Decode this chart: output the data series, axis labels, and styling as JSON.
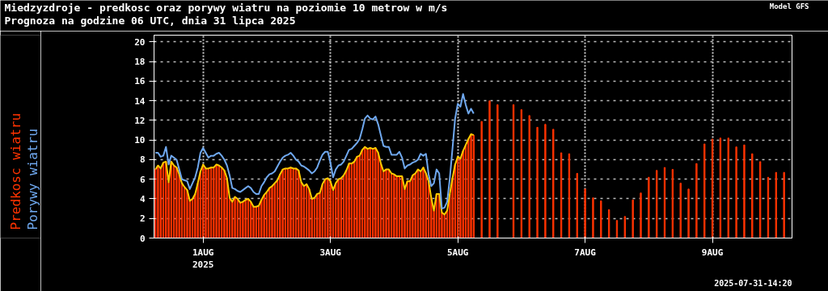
{
  "chart_data": {
    "type": "bar",
    "title": "Miedzyzdroje - predkosc oraz porywy wiatru na poziomie 10 metrow w m/s",
    "subtitle": "Prognoza na godzine 06 UTC, dnia 31 lipca 2025",
    "annotations": [
      "Model GFS",
      "2025-07-31-14:20"
    ],
    "legend": "left",
    "grid": true,
    "xlim": [
      "2025-07-31T05:30",
      "2025-08-10T06:00"
    ],
    "xticks": [
      {
        "value": "2025-08-01",
        "label": "1AUG\n2025"
      },
      {
        "value": "2025-08-03",
        "label": "3AUG"
      },
      {
        "value": "2025-08-05",
        "label": "5AUG"
      },
      {
        "value": "2025-08-07",
        "label": "7AUG"
      },
      {
        "value": "2025-08-09",
        "label": "9AUG"
      }
    ],
    "ylim": [
      0,
      20.7
    ],
    "yticks": [
      0,
      2,
      4,
      6,
      8,
      10,
      12,
      14,
      16,
      18,
      20
    ],
    "x": [
      "2025-07-31T06:00",
      "2025-07-31T07:00",
      "2025-07-31T08:00",
      "2025-07-31T09:00",
      "2025-07-31T10:00",
      "2025-07-31T11:00",
      "2025-07-31T12:00",
      "2025-07-31T13:00",
      "2025-07-31T14:00",
      "2025-07-31T15:00",
      "2025-07-31T16:00",
      "2025-07-31T17:00",
      "2025-07-31T18:00",
      "2025-07-31T19:00",
      "2025-07-31T20:00",
      "2025-07-31T21:00",
      "2025-07-31T22:00",
      "2025-07-31T23:00",
      "2025-08-01T00:00",
      "2025-08-01T01:00",
      "2025-08-01T02:00",
      "2025-08-01T03:00",
      "2025-08-01T04:00",
      "2025-08-01T05:00",
      "2025-08-01T06:00",
      "2025-08-01T07:00",
      "2025-08-01T08:00",
      "2025-08-01T09:00",
      "2025-08-01T10:00",
      "2025-08-01T11:00",
      "2025-08-01T12:00",
      "2025-08-01T13:00",
      "2025-08-01T14:00",
      "2025-08-01T15:00",
      "2025-08-01T16:00",
      "2025-08-01T17:00",
      "2025-08-01T18:00",
      "2025-08-01T19:00",
      "2025-08-01T20:00",
      "2025-08-01T21:00",
      "2025-08-01T22:00",
      "2025-08-01T23:00",
      "2025-08-02T00:00",
      "2025-08-02T01:00",
      "2025-08-02T02:00",
      "2025-08-02T03:00",
      "2025-08-02T04:00",
      "2025-08-02T05:00",
      "2025-08-02T06:00",
      "2025-08-02T07:00",
      "2025-08-02T08:00",
      "2025-08-02T09:00",
      "2025-08-02T10:00",
      "2025-08-02T11:00",
      "2025-08-02T12:00",
      "2025-08-02T13:00",
      "2025-08-02T14:00",
      "2025-08-02T15:00",
      "2025-08-02T16:00",
      "2025-08-02T17:00",
      "2025-08-02T18:00",
      "2025-08-02T19:00",
      "2025-08-02T20:00",
      "2025-08-02T21:00",
      "2025-08-02T22:00",
      "2025-08-02T23:00",
      "2025-08-03T00:00",
      "2025-08-03T01:00",
      "2025-08-03T02:00",
      "2025-08-03T03:00",
      "2025-08-03T04:00",
      "2025-08-03T05:00",
      "2025-08-03T06:00",
      "2025-08-03T07:00",
      "2025-08-03T08:00",
      "2025-08-03T09:00",
      "2025-08-03T10:00",
      "2025-08-03T11:00",
      "2025-08-03T12:00",
      "2025-08-03T13:00",
      "2025-08-03T14:00",
      "2025-08-03T15:00",
      "2025-08-03T16:00",
      "2025-08-03T17:00",
      "2025-08-03T18:00",
      "2025-08-03T19:00",
      "2025-08-03T20:00",
      "2025-08-03T21:00",
      "2025-08-03T22:00",
      "2025-08-03T23:00",
      "2025-08-04T00:00",
      "2025-08-04T01:00",
      "2025-08-04T02:00",
      "2025-08-04T03:00",
      "2025-08-04T04:00",
      "2025-08-04T05:00",
      "2025-08-04T06:00",
      "2025-08-04T07:00",
      "2025-08-04T08:00",
      "2025-08-04T09:00",
      "2025-08-04T10:00",
      "2025-08-04T11:00",
      "2025-08-04T12:00",
      "2025-08-04T13:00",
      "2025-08-04T14:00",
      "2025-08-04T15:00",
      "2025-08-04T16:00",
      "2025-08-04T17:00",
      "2025-08-04T18:00",
      "2025-08-04T19:00",
      "2025-08-04T20:00",
      "2025-08-04T21:00",
      "2025-08-04T22:00",
      "2025-08-04T23:00",
      "2025-08-05T00:00",
      "2025-08-05T01:00",
      "2025-08-05T02:00",
      "2025-08-05T03:00",
      "2025-08-05T04:00",
      "2025-08-05T05:00",
      "2025-08-05T06:00"
    ],
    "series": [
      {
        "name": "Predkosc wiatru",
        "color": "#ff3300",
        "x": [
          "2025-07-31T06:00",
          "2025-07-31T07:00",
          "2025-07-31T08:00",
          "2025-07-31T09:00",
          "2025-07-31T10:00",
          "2025-07-31T11:00",
          "2025-07-31T12:00",
          "2025-07-31T13:00",
          "2025-07-31T14:00",
          "2025-07-31T15:00",
          "2025-07-31T16:00",
          "2025-07-31T17:00",
          "2025-07-31T18:00",
          "2025-07-31T19:00",
          "2025-07-31T20:00",
          "2025-07-31T21:00",
          "2025-07-31T22:00",
          "2025-07-31T23:00",
          "2025-08-01T00:00",
          "2025-08-01T01:00",
          "2025-08-01T02:00",
          "2025-08-01T03:00",
          "2025-08-01T04:00",
          "2025-08-01T05:00",
          "2025-08-01T06:00",
          "2025-08-01T07:00",
          "2025-08-01T08:00",
          "2025-08-01T09:00",
          "2025-08-01T10:00",
          "2025-08-01T11:00",
          "2025-08-01T12:00",
          "2025-08-01T13:00",
          "2025-08-01T14:00",
          "2025-08-01T15:00",
          "2025-08-01T16:00",
          "2025-08-01T17:00",
          "2025-08-01T18:00",
          "2025-08-01T19:00",
          "2025-08-01T20:00",
          "2025-08-01T21:00",
          "2025-08-01T22:00",
          "2025-08-01T23:00",
          "2025-08-02T00:00",
          "2025-08-02T01:00",
          "2025-08-02T02:00",
          "2025-08-02T03:00",
          "2025-08-02T04:00",
          "2025-08-02T05:00",
          "2025-08-02T06:00",
          "2025-08-02T07:00",
          "2025-08-02T08:00",
          "2025-08-02T09:00",
          "2025-08-02T10:00",
          "2025-08-02T11:00",
          "2025-08-02T12:00",
          "2025-08-02T13:00",
          "2025-08-02T14:00",
          "2025-08-02T15:00",
          "2025-08-02T16:00",
          "2025-08-02T17:00",
          "2025-08-02T18:00",
          "2025-08-02T19:00",
          "2025-08-02T20:00",
          "2025-08-02T21:00",
          "2025-08-02T22:00",
          "2025-08-02T23:00",
          "2025-08-03T00:00",
          "2025-08-03T01:00",
          "2025-08-03T02:00",
          "2025-08-03T03:00",
          "2025-08-03T04:00",
          "2025-08-03T05:00",
          "2025-08-03T06:00",
          "2025-08-03T07:00",
          "2025-08-03T08:00",
          "2025-08-03T09:00",
          "2025-08-03T10:00",
          "2025-08-03T11:00",
          "2025-08-03T12:00",
          "2025-08-03T13:00",
          "2025-08-03T14:00",
          "2025-08-03T15:00",
          "2025-08-03T16:00",
          "2025-08-03T17:00",
          "2025-08-03T18:00",
          "2025-08-03T19:00",
          "2025-08-03T20:00",
          "2025-08-03T21:00",
          "2025-08-03T22:00",
          "2025-08-03T23:00",
          "2025-08-04T00:00",
          "2025-08-04T01:00",
          "2025-08-04T02:00",
          "2025-08-04T03:00",
          "2025-08-04T04:00",
          "2025-08-04T05:00",
          "2025-08-04T06:00",
          "2025-08-04T07:00",
          "2025-08-04T08:00",
          "2025-08-04T09:00",
          "2025-08-04T10:00",
          "2025-08-04T11:00",
          "2025-08-04T12:00",
          "2025-08-04T13:00",
          "2025-08-04T14:00",
          "2025-08-04T15:00",
          "2025-08-04T16:00",
          "2025-08-04T17:00",
          "2025-08-04T18:00",
          "2025-08-04T19:00",
          "2025-08-04T20:00",
          "2025-08-04T21:00",
          "2025-08-04T22:00",
          "2025-08-04T23:00",
          "2025-08-05T00:00",
          "2025-08-05T01:00",
          "2025-08-05T02:00",
          "2025-08-05T03:00",
          "2025-08-05T04:00",
          "2025-08-05T05:00",
          "2025-08-05T06:00",
          "2025-08-05T09:00",
          "2025-08-05T12:00",
          "2025-08-05T15:00",
          "2025-08-05T21:00",
          "2025-08-06T00:00",
          "2025-08-06T03:00",
          "2025-08-06T06:00",
          "2025-08-06T09:00",
          "2025-08-06T12:00",
          "2025-08-06T15:00",
          "2025-08-06T18:00",
          "2025-08-06T21:00",
          "2025-08-07T00:00",
          "2025-08-07T03:00",
          "2025-08-07T06:00",
          "2025-08-07T09:00",
          "2025-08-07T12:00",
          "2025-08-07T15:00",
          "2025-08-07T18:00",
          "2025-08-07T21:00",
          "2025-08-08T00:00",
          "2025-08-08T03:00",
          "2025-08-08T06:00",
          "2025-08-08T09:00",
          "2025-08-08T12:00",
          "2025-08-08T15:00",
          "2025-08-08T18:00",
          "2025-08-08T21:00",
          "2025-08-09T00:00",
          "2025-08-09T03:00",
          "2025-08-09T06:00",
          "2025-08-09T09:00",
          "2025-08-09T12:00",
          "2025-08-09T15:00",
          "2025-08-09T18:00",
          "2025-08-09T21:00",
          "2025-08-10T00:00",
          "2025-08-10T03:00"
        ],
        "values": [
          7.0,
          7.4,
          7.1,
          7.7,
          7.8,
          5.7,
          7.8,
          7.4,
          7.2,
          6.5,
          5.6,
          5.2,
          4.9,
          3.8,
          4.0,
          4.5,
          5.6,
          6.8,
          7.5,
          7.1,
          7.1,
          7.2,
          7.2,
          7.5,
          7.4,
          7.2,
          6.9,
          6.1,
          4.1,
          3.7,
          4.2,
          4.0,
          3.6,
          3.7,
          3.9,
          4.0,
          3.7,
          3.2,
          3.2,
          3.3,
          3.9,
          4.4,
          4.7,
          5.1,
          5.3,
          5.6,
          5.9,
          6.5,
          7.0,
          7.1,
          7.1,
          7.2,
          7.1,
          7.1,
          6.9,
          5.7,
          5.3,
          5.5,
          5.0,
          4.0,
          4.1,
          4.5,
          4.6,
          5.5,
          6.0,
          6.1,
          5.8,
          4.9,
          5.6,
          6.0,
          6.1,
          6.4,
          6.9,
          7.6,
          7.6,
          7.8,
          8.3,
          8.4,
          9.0,
          9.3,
          9.1,
          9.2,
          9.1,
          9.2,
          8.7,
          7.6,
          6.8,
          7.0,
          7.0,
          6.6,
          6.5,
          6.3,
          6.3,
          6.3,
          5.0,
          5.8,
          5.8,
          6.4,
          6.6,
          7.0,
          6.8,
          7.2,
          6.6,
          5.8,
          4.1,
          2.8,
          4.5,
          4.5,
          2.6,
          2.4,
          2.8,
          4.5,
          6.1,
          7.5,
          8.3,
          8.1,
          8.9,
          9.5,
          10.1,
          10.6,
          10.5,
          11.9,
          14.0,
          13.6,
          13.6,
          13.1,
          12.5,
          11.3,
          11.6,
          11.1,
          8.7,
          8.6,
          6.6,
          5.0,
          4.1,
          3.8,
          2.9,
          1.8,
          2.2,
          3.9,
          4.6,
          6.2,
          6.9,
          7.2,
          7.0,
          5.6,
          5.0,
          7.6,
          9.6,
          10.1,
          10.2,
          10.2,
          9.3,
          9.5,
          8.6,
          7.8,
          6.2,
          6.7,
          6.7
        ]
      },
      {
        "type": "line",
        "color": "#ffcc00",
        "values": [
          7.0,
          7.4,
          7.1,
          7.7,
          7.8,
          5.7,
          7.8,
          7.4,
          7.2,
          6.5,
          5.6,
          5.2,
          4.9,
          3.8,
          4.0,
          4.5,
          5.6,
          6.8,
          7.5,
          7.1,
          7.1,
          7.2,
          7.2,
          7.5,
          7.4,
          7.2,
          6.9,
          6.1,
          4.1,
          3.7,
          4.2,
          4.0,
          3.6,
          3.7,
          3.9,
          4.0,
          3.7,
          3.2,
          3.2,
          3.3,
          3.9,
          4.4,
          4.7,
          5.1,
          5.3,
          5.6,
          5.9,
          6.5,
          7.0,
          7.1,
          7.1,
          7.2,
          7.1,
          7.1,
          6.9,
          5.7,
          5.3,
          5.5,
          5.0,
          4.0,
          4.1,
          4.5,
          4.6,
          5.5,
          6.0,
          6.1,
          5.8,
          4.9,
          5.6,
          6.0,
          6.1,
          6.4,
          6.9,
          7.6,
          7.6,
          7.8,
          8.3,
          8.4,
          9.0,
          9.3,
          9.1,
          9.2,
          9.1,
          9.2,
          8.7,
          7.6,
          6.8,
          7.0,
          7.0,
          6.6,
          6.5,
          6.3,
          6.3,
          6.3,
          5.0,
          5.8,
          5.8,
          6.4,
          6.6,
          7.0,
          6.8,
          7.2,
          6.6,
          5.8,
          4.1,
          2.8,
          4.5,
          4.5,
          2.6,
          2.4,
          2.8,
          4.5,
          6.1,
          7.5,
          8.3,
          8.1,
          8.9,
          9.5,
          10.1,
          10.6,
          10.5
        ]
      },
      {
        "name": "Porywy wiatru",
        "type": "line",
        "color": "#6fa8ef",
        "values": [
          8.7,
          8.7,
          8.3,
          8.4,
          9.3,
          7.5,
          8.4,
          8.2,
          8.0,
          7.0,
          6.0,
          5.9,
          5.8,
          5.0,
          5.6,
          6.2,
          7.2,
          8.7,
          9.2,
          8.7,
          8.2,
          8.4,
          8.4,
          8.6,
          8.7,
          8.4,
          8.0,
          7.4,
          6.4,
          5.1,
          5.0,
          4.8,
          4.7,
          4.9,
          5.1,
          5.3,
          5.1,
          4.7,
          4.5,
          4.5,
          5.3,
          5.7,
          6.2,
          6.5,
          6.6,
          6.8,
          7.3,
          7.8,
          8.2,
          8.4,
          8.5,
          8.7,
          8.4,
          8.0,
          7.8,
          7.4,
          7.3,
          7.1,
          6.9,
          6.6,
          6.8,
          7.2,
          7.9,
          8.5,
          8.8,
          8.8,
          7.7,
          6.2,
          7.0,
          7.4,
          7.5,
          7.8,
          8.4,
          9.0,
          9.1,
          9.4,
          9.7,
          10.1,
          11.1,
          12.2,
          12.5,
          12.2,
          12.1,
          12.4,
          11.6,
          10.5,
          9.4,
          9.3,
          9.3,
          8.5,
          8.5,
          8.5,
          8.8,
          8.2,
          7.1,
          7.4,
          7.5,
          7.7,
          7.8,
          8.0,
          8.6,
          8.4,
          8.6,
          6.5,
          5.3,
          5.6,
          7.0,
          6.6,
          3.0,
          3.1,
          3.7,
          6.1,
          9.1,
          12.2,
          13.7,
          13.4,
          14.7,
          13.6,
          12.7,
          13.2,
          12.7
        ]
      }
    ]
  }
}
